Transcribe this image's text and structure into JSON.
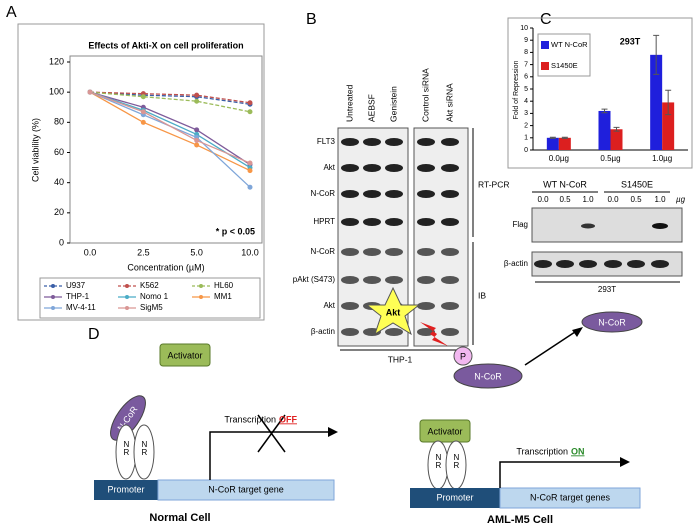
{
  "panel_labels": [
    "A",
    "B",
    "C",
    "D"
  ],
  "chart_data": [
    {
      "type": "line",
      "title": "Effects of Akti-X on cell proliferation",
      "x_label": "Concentration (µM)",
      "y_label": "Cell viability (%)",
      "categories": [
        "0.0",
        "2.5",
        "5.0",
        "10.0"
      ],
      "ylim": [
        0,
        120
      ],
      "yticks": [
        0,
        20,
        40,
        60,
        80,
        100,
        120
      ],
      "annotation": "* p < 0.05",
      "series": [
        {
          "name": "U937",
          "color": "#3a5fa8",
          "dashed": true,
          "values": [
            100,
            98,
            97,
            92
          ]
        },
        {
          "name": "K562",
          "color": "#c0504d",
          "dashed": true,
          "values": [
            100,
            99,
            98,
            93
          ]
        },
        {
          "name": "HL60",
          "color": "#9bbb59",
          "dashed": true,
          "values": [
            100,
            97,
            94,
            87
          ]
        },
        {
          "name": "THP-1",
          "color": "#7e5b9a",
          "dashed": false,
          "values": [
            100,
            90,
            75,
            52
          ]
        },
        {
          "name": "Nomo 1",
          "color": "#4bacc6",
          "dashed": false,
          "values": [
            100,
            88,
            72,
            50
          ]
        },
        {
          "name": "MM1",
          "color": "#f79646",
          "dashed": false,
          "values": [
            100,
            80,
            65,
            48
          ]
        },
        {
          "name": "MV-4-11",
          "color": "#7fa6d9",
          "dashed": false,
          "values": [
            100,
            85,
            70,
            37
          ]
        },
        {
          "name": "SigM5",
          "color": "#d99694",
          "dashed": false,
          "values": [
            100,
            87,
            68,
            53
          ]
        }
      ]
    },
    {
      "type": "bar",
      "title": "293T",
      "y_label": "Fold of Repression",
      "categories": [
        "0.0µg",
        "0.5µg",
        "1.0µg"
      ],
      "ylim": [
        0,
        10
      ],
      "yticks": [
        0,
        1,
        2,
        3,
        4,
        5,
        6,
        7,
        8,
        9,
        10
      ],
      "series": [
        {
          "name": "WT N-CoR",
          "color": "#1f1fdc",
          "values": [
            1,
            3.2,
            7.8
          ],
          "errors": [
            0.05,
            0.15,
            1.6
          ]
        },
        {
          "name": "S1450E",
          "color": "#dc1f1f",
          "values": [
            1,
            1.7,
            3.9
          ],
          "errors": [
            0.05,
            0.15,
            1.0
          ]
        }
      ]
    }
  ],
  "blot_b": {
    "columns": [
      "Untreated",
      "AEBSF",
      "Genistein",
      "Control siRNA",
      "Akt siRNA"
    ],
    "rows": [
      "FLT3",
      "Akt",
      "N-CoR",
      "HPRT",
      "N-CoR",
      "pAkt (S473)",
      "Akt",
      "β-actin"
    ],
    "groups": [
      "RT-PCR",
      "IB"
    ],
    "cell_line": "THP-1"
  },
  "blot_c": {
    "groups": [
      "WT N-CoR",
      "S1450E"
    ],
    "lanes": [
      "0.0",
      "0.5",
      "1.0",
      "0.0",
      "0.5",
      "1.0"
    ],
    "unit": "µg",
    "rows": [
      "Flag",
      "β-actin"
    ],
    "cell_line": "293T"
  },
  "mechanism": {
    "kinase": "Akt",
    "phospho": "P",
    "substrate": "N-CoR",
    "product": "N-CoR"
  },
  "panel_d": {
    "activator": "Activator",
    "corepressor": "N-CoR",
    "receptor": "NR",
    "transcription": "Transcription",
    "off": "OFF",
    "on": "ON",
    "promoter": "Promoter",
    "gene_left": "N-CoR target gene",
    "gene_right": "N-CoR target genes",
    "cell_left": "Normal Cell",
    "cell_right": "AML-M5 Cell"
  }
}
